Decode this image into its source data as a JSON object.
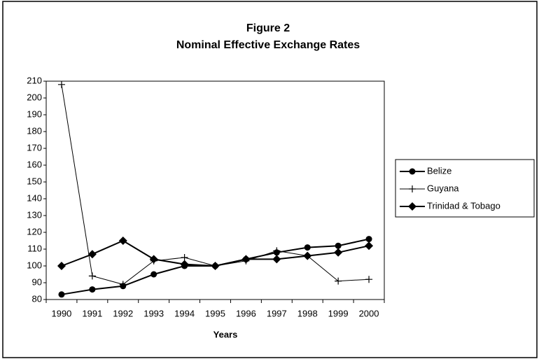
{
  "chart_data": {
    "type": "line",
    "title": "Figure 2",
    "subtitle": "Nominal Effective Exchange Rates",
    "x_label": "Years",
    "categories": [
      "1990",
      "1991",
      "1992",
      "1993",
      "1994",
      "1995",
      "1996",
      "1997",
      "1998",
      "1999",
      "2000"
    ],
    "series": [
      {
        "name": "Belize",
        "color": "#000000",
        "marker": "circle",
        "values": [
          83,
          86,
          88,
          95,
          100,
          100,
          104,
          108,
          111,
          112,
          116
        ]
      },
      {
        "name": "Guyana",
        "color": "#000000",
        "marker": "plus",
        "values": [
          208,
          94,
          89,
          103,
          105,
          100,
          103,
          109,
          106,
          91,
          92
        ]
      },
      {
        "name": "Trinidad & Tobago",
        "color": "#000000",
        "marker": "diamond",
        "values": [
          100,
          107,
          115,
          104,
          101,
          100,
          104,
          104,
          106,
          108,
          112
        ]
      }
    ],
    "ylim": [
      80,
      210
    ],
    "yticks": [
      80,
      90,
      100,
      110,
      120,
      130,
      140,
      150,
      160,
      170,
      180,
      190,
      200,
      210
    ],
    "grid": false,
    "legend": "right"
  }
}
